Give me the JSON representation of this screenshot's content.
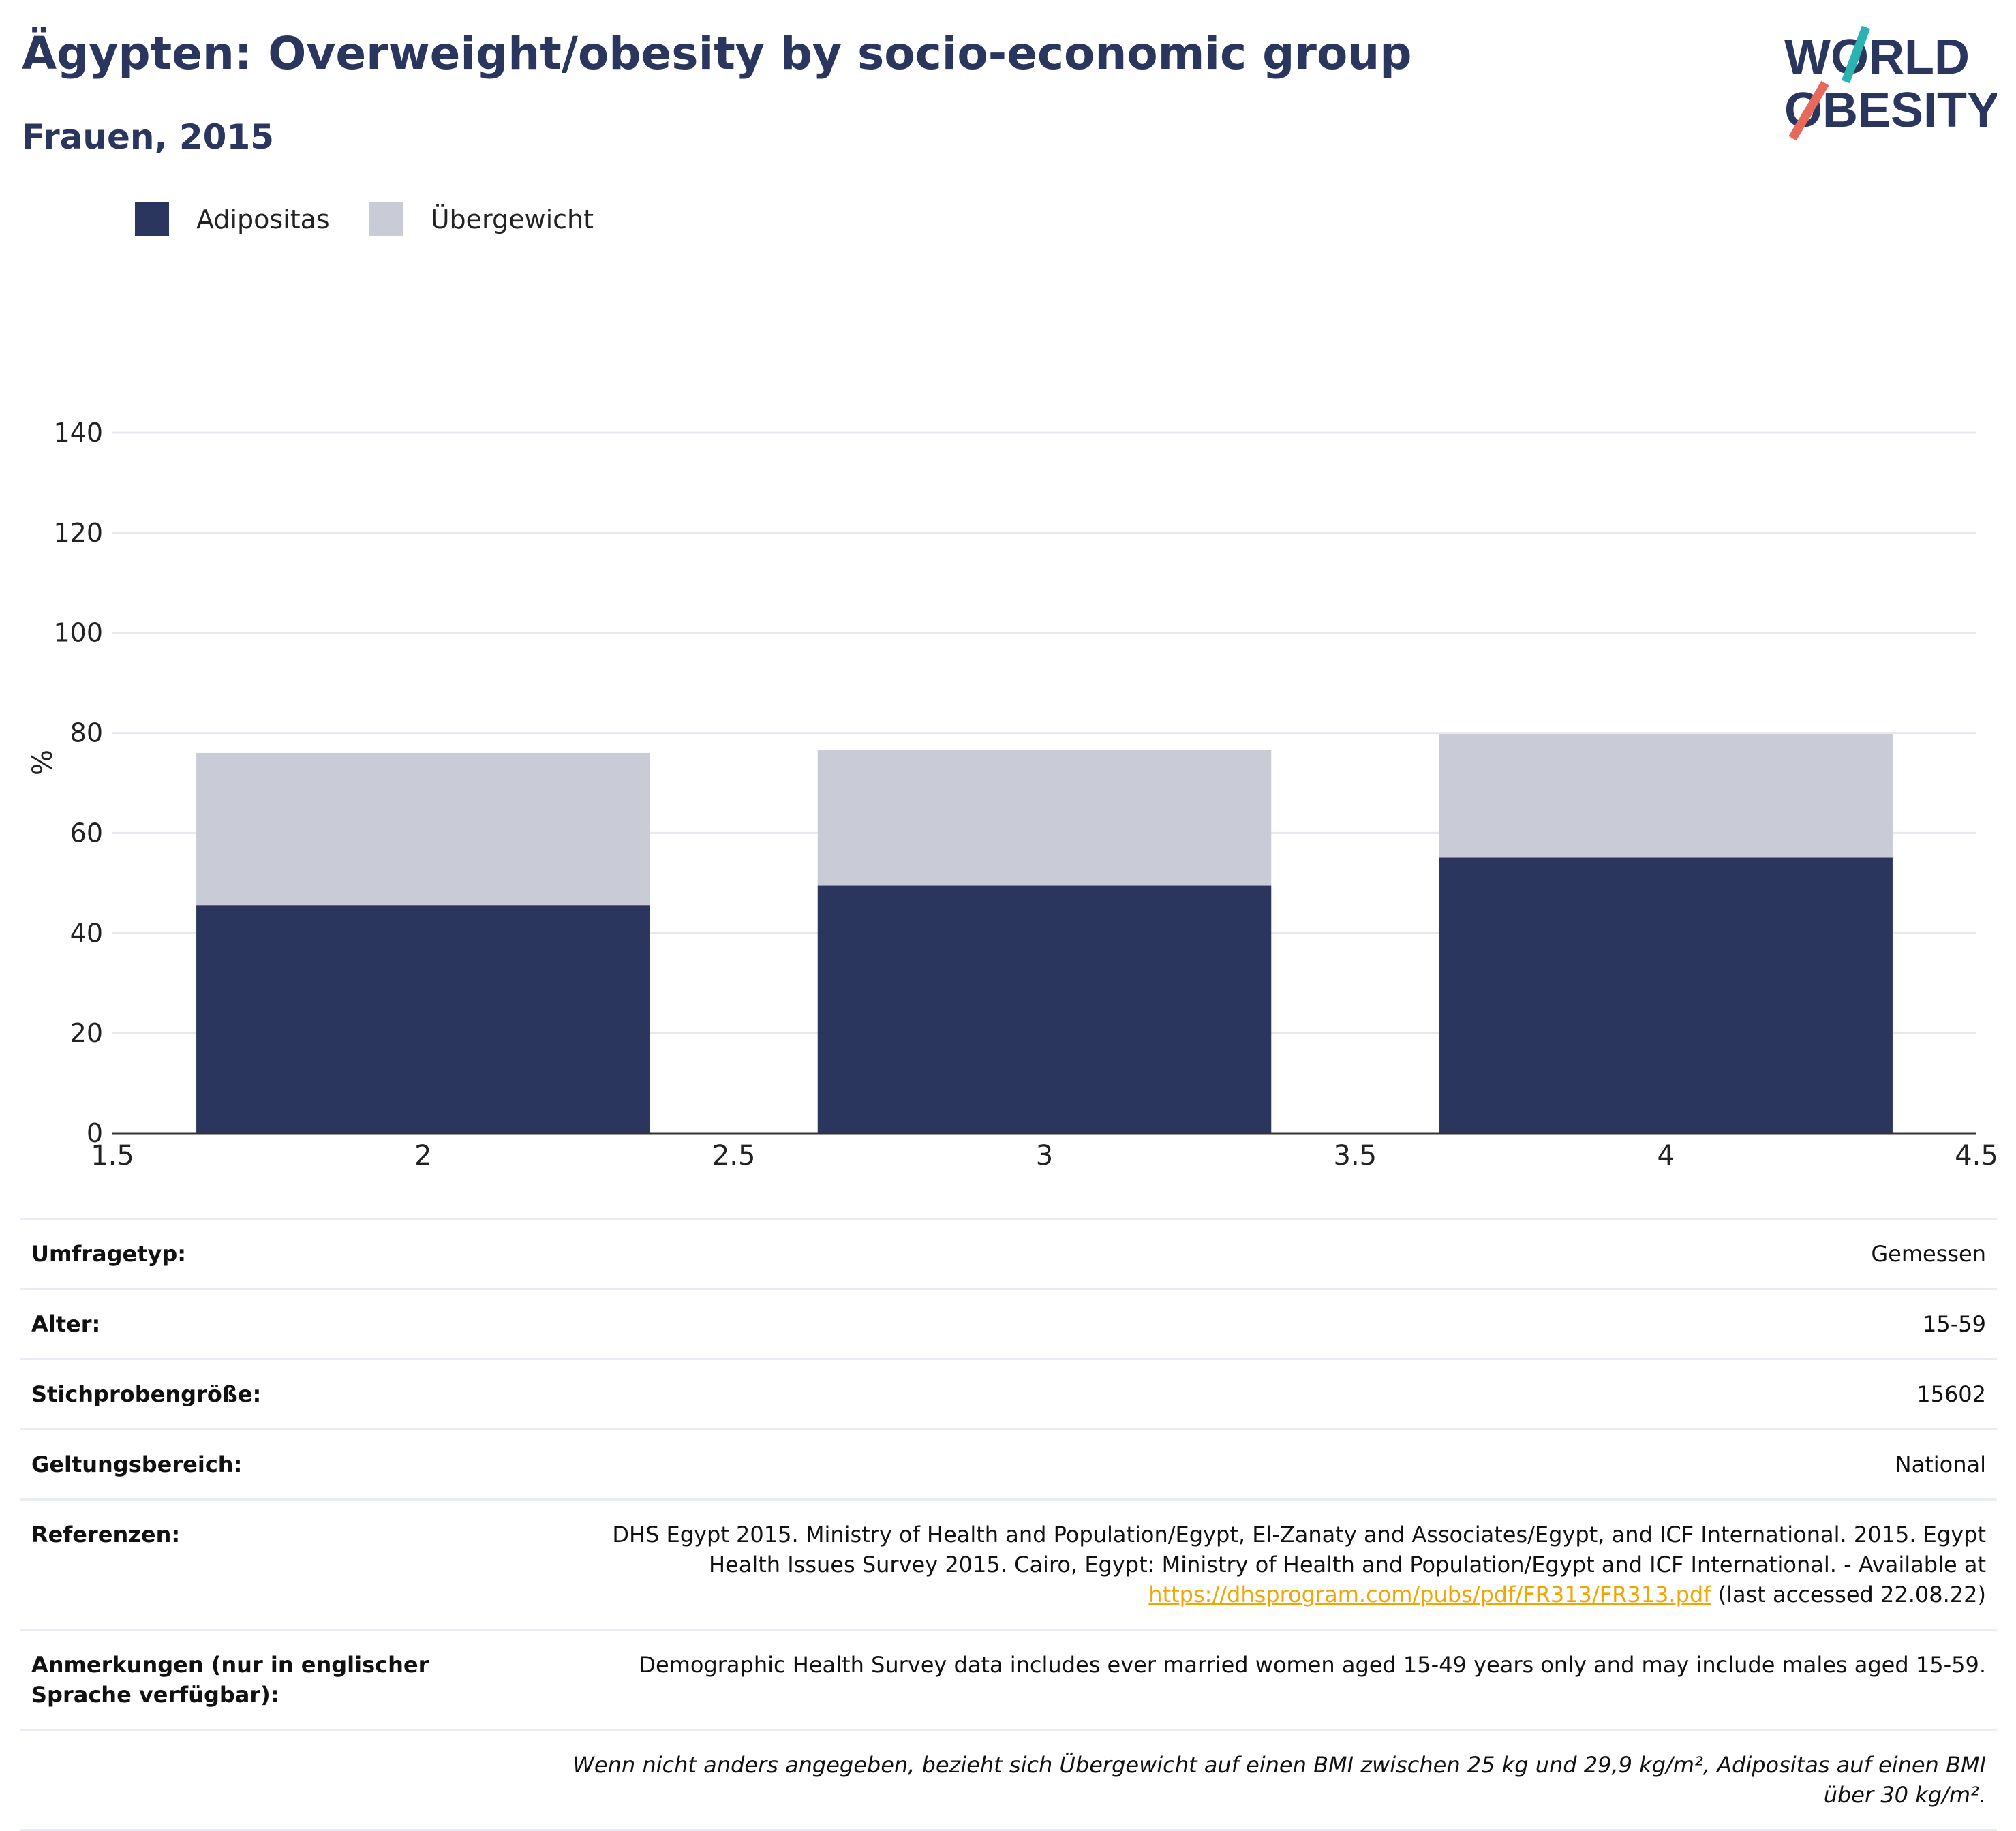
{
  "title": "Ägypten: Overweight/obesity by socio-economic group",
  "subtitle": "Frauen, 2015",
  "logo": {
    "line1": "WORLD",
    "line2": "OBESITY"
  },
  "colors": {
    "adipositas": "#2b365e",
    "uebergewicht": "#c9ccd6",
    "title": "#2b365e",
    "logo_teal": "#2bb3b1",
    "logo_coral": "#e8685a",
    "link": "#f0a500"
  },
  "legend": [
    {
      "label": "Adipositas",
      "color": "#2b365e"
    },
    {
      "label": "Übergewicht",
      "color": "#c9ccd6"
    }
  ],
  "chart_data": {
    "type": "bar",
    "stacked": true,
    "x": [
      2,
      3,
      4
    ],
    "series": [
      {
        "name": "Adipositas",
        "values": [
          45.6,
          49.5,
          55.1
        ]
      },
      {
        "name": "Übergewicht",
        "values": [
          30.4,
          27.1,
          24.7
        ]
      }
    ],
    "xlim": [
      1.5,
      4.5
    ],
    "ylim": [
      0,
      140
    ],
    "yticks": [
      0,
      20,
      40,
      60,
      80,
      100,
      120,
      140
    ],
    "xticks": [
      1.5,
      2,
      2.5,
      3,
      3.5,
      4,
      4.5
    ],
    "xticklabels": [
      "1.5",
      "2",
      "2.5",
      "3",
      "3.5",
      "4",
      "4.5"
    ],
    "ylabel": "%",
    "grid": true,
    "legend_position": "top-left"
  },
  "info": [
    {
      "key": "Umfragetyp:",
      "value": "Gemessen"
    },
    {
      "key": "Alter:",
      "value": "15-59"
    },
    {
      "key": "Stichprobengröße:",
      "value": "15602"
    },
    {
      "key": "Geltungsbereich:",
      "value": "National"
    }
  ],
  "references": {
    "key": "Referenzen:",
    "text": "DHS Egypt 2015. Ministry of Health and Population/Egypt, El-Zanaty and Associates/Egypt, and ICF International. 2015. Egypt Health Issues Survey 2015. Cairo, Egypt: Ministry of Health and Population/Egypt and ICF International. - Available at",
    "link": "https://dhsprogram.com/pubs/pdf/FR313/FR313.pdf",
    "suffix": "(last accessed 22.08.22)"
  },
  "notes": {
    "key": "Anmerkungen (nur in englischer Sprache verfügbar):",
    "value": "Demographic Health Survey data includes ever married women aged 15-49 years only and may include males aged 15-59."
  },
  "footnote": "Wenn nicht anders angegeben, bezieht sich Übergewicht auf einen BMI zwischen 25 kg und 29,9 kg/m², Adipositas auf einen BMI über 30 kg/m²."
}
